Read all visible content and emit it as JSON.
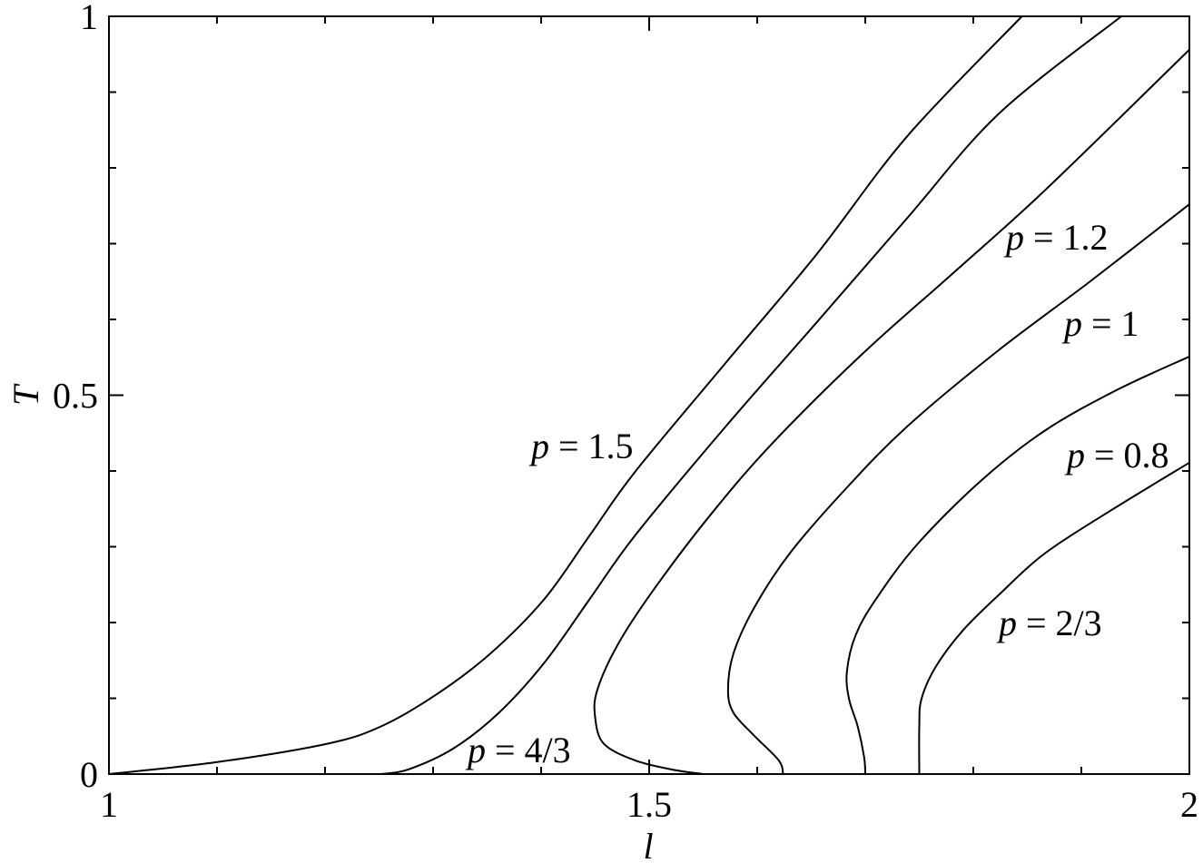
{
  "chart_data": {
    "type": "line",
    "xlabel": "l",
    "ylabel": "T",
    "xlim": [
      1,
      2
    ],
    "ylim": [
      0,
      1
    ],
    "xticks": [
      1,
      1.5,
      2
    ],
    "yticks": [
      0,
      0.5,
      1
    ],
    "xticks_minor": [
      1.1,
      1.2,
      1.3,
      1.4,
      1.6,
      1.7,
      1.8,
      1.9
    ],
    "yticks_minor": [
      0.1,
      0.2,
      0.3,
      0.4,
      0.6,
      0.7,
      0.8,
      0.9
    ],
    "color": "#000000",
    "series": [
      {
        "name": "p = 1.5",
        "color": "#000000",
        "x": [
          1.0,
          1.101,
          1.202,
          1.252,
          1.303,
          1.353,
          1.403,
          1.445,
          1.487,
          1.571,
          1.655,
          1.739,
          1.845
        ],
        "values": [
          0,
          0.016,
          0.04,
          0.063,
          0.105,
          0.159,
          0.231,
          0.315,
          0.399,
          0.543,
          0.686,
          0.842,
          1.0
        ]
      },
      {
        "name": "p = 4/3",
        "color": "#000000",
        "x": [
          1.252,
          1.277,
          1.319,
          1.361,
          1.403,
          1.445,
          1.487,
          1.571,
          1.655,
          1.739,
          1.824,
          1.937
        ],
        "values": [
          0,
          0.006,
          0.034,
          0.081,
          0.147,
          0.231,
          0.315,
          0.459,
          0.596,
          0.734,
          0.872,
          1.0
        ]
      },
      {
        "name": "p = 1.2",
        "color": "#000000",
        "x": [
          1.55,
          1.521,
          1.487,
          1.458,
          1.45,
          1.452,
          1.471,
          1.504,
          1.555,
          1.613,
          1.697,
          1.782,
          1.866,
          2.0
        ],
        "values": [
          0,
          0.006,
          0.018,
          0.04,
          0.075,
          0.111,
          0.171,
          0.243,
          0.339,
          0.435,
          0.554,
          0.662,
          0.77,
          0.956
        ]
      },
      {
        "name": "p = 1",
        "color": "#000000",
        "x": [
          1.624,
          1.62,
          1.597,
          1.578,
          1.573,
          1.578,
          1.597,
          1.63,
          1.681,
          1.739,
          1.824,
          1.908,
          2.0
        ],
        "values": [
          0,
          0.018,
          0.051,
          0.081,
          0.111,
          0.159,
          0.219,
          0.291,
          0.375,
          0.459,
          0.56,
          0.65,
          0.752
        ]
      },
      {
        "name": "p = 0.8",
        "color": "#000000",
        "x": [
          1.7,
          1.699,
          1.693,
          1.685,
          1.683,
          1.691,
          1.71,
          1.748,
          1.807,
          1.866,
          1.933,
          2.0
        ],
        "values": [
          0,
          0.022,
          0.063,
          0.099,
          0.135,
          0.183,
          0.231,
          0.303,
          0.387,
          0.453,
          0.507,
          0.551
        ]
      },
      {
        "name": "p = 2/3",
        "color": "#000000",
        "x": [
          1.75,
          1.75,
          1.752,
          1.765,
          1.79,
          1.824,
          1.866,
          1.924,
          2.0
        ],
        "values": [
          0,
          0.063,
          0.099,
          0.141,
          0.189,
          0.237,
          0.291,
          0.345,
          0.411
        ]
      }
    ]
  }
}
